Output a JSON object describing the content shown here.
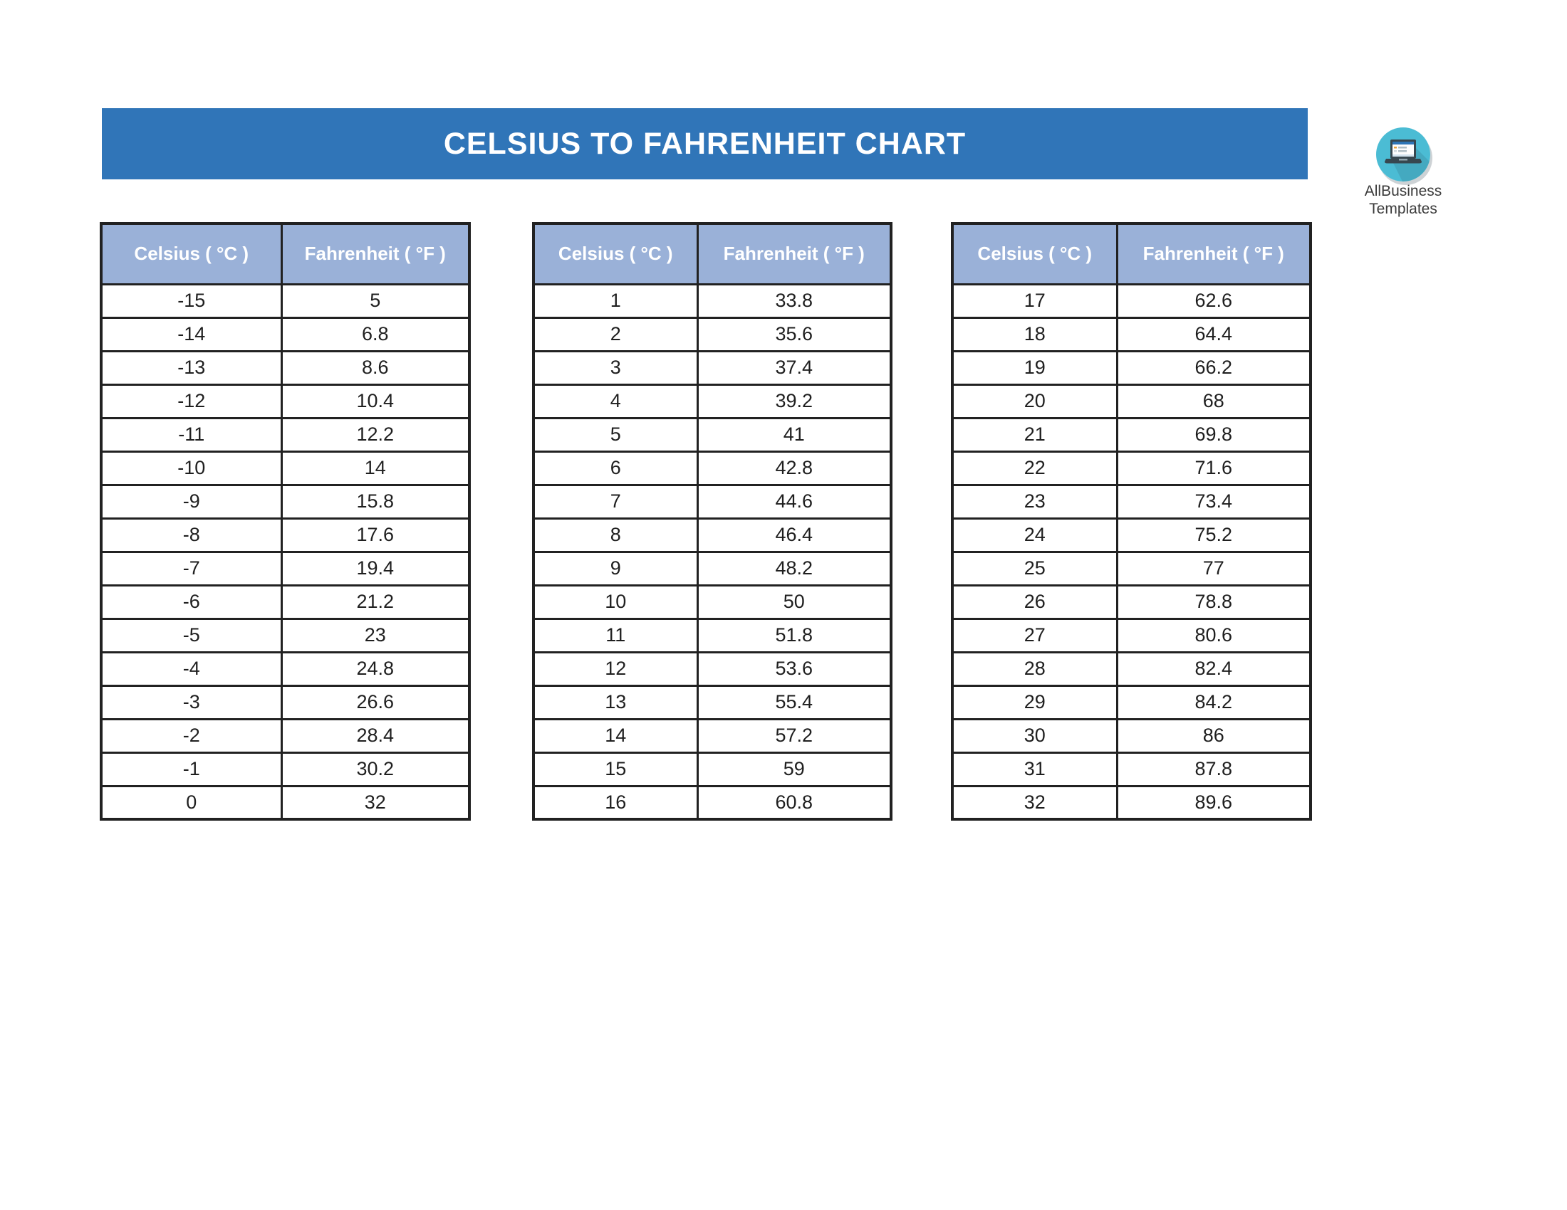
{
  "banner": {
    "title": "CELSIUS TO FAHRENHEIT CHART",
    "bg_color": "#3075B8",
    "text_color": "#ffffff"
  },
  "logo": {
    "icon": "laptop-icon",
    "line1": "AllBusiness",
    "line2": "Templates",
    "circle_color": "#4BBCD4",
    "text_color": "#3b3b3b"
  },
  "colors": {
    "table_header_bg": "#9AB1D8",
    "table_border": "#212121",
    "cell_text": "#1f1f1f"
  },
  "tables": [
    {
      "headers": [
        "Celsius ( °C )",
        "Fahrenheit ( °F )"
      ],
      "rows": [
        [
          "-15",
          "5"
        ],
        [
          "-14",
          "6.8"
        ],
        [
          "-13",
          "8.6"
        ],
        [
          "-12",
          "10.4"
        ],
        [
          "-11",
          "12.2"
        ],
        [
          "-10",
          "14"
        ],
        [
          "-9",
          "15.8"
        ],
        [
          "-8",
          "17.6"
        ],
        [
          "-7",
          "19.4"
        ],
        [
          "-6",
          "21.2"
        ],
        [
          "-5",
          "23"
        ],
        [
          "-4",
          "24.8"
        ],
        [
          "-3",
          "26.6"
        ],
        [
          "-2",
          "28.4"
        ],
        [
          "-1",
          "30.2"
        ],
        [
          "0",
          "32"
        ]
      ]
    },
    {
      "headers": [
        "Celsius ( °C )",
        "Fahrenheit ( °F )"
      ],
      "rows": [
        [
          "1",
          "33.8"
        ],
        [
          "2",
          "35.6"
        ],
        [
          "3",
          "37.4"
        ],
        [
          "4",
          "39.2"
        ],
        [
          "5",
          "41"
        ],
        [
          "6",
          "42.8"
        ],
        [
          "7",
          "44.6"
        ],
        [
          "8",
          "46.4"
        ],
        [
          "9",
          "48.2"
        ],
        [
          "10",
          "50"
        ],
        [
          "11",
          "51.8"
        ],
        [
          "12",
          "53.6"
        ],
        [
          "13",
          "55.4"
        ],
        [
          "14",
          "57.2"
        ],
        [
          "15",
          "59"
        ],
        [
          "16",
          "60.8"
        ]
      ]
    },
    {
      "headers": [
        "Celsius ( °C )",
        "Fahrenheit ( °F )"
      ],
      "rows": [
        [
          "17",
          "62.6"
        ],
        [
          "18",
          "64.4"
        ],
        [
          "19",
          "66.2"
        ],
        [
          "20",
          "68"
        ],
        [
          "21",
          "69.8"
        ],
        [
          "22",
          "71.6"
        ],
        [
          "23",
          "73.4"
        ],
        [
          "24",
          "75.2"
        ],
        [
          "25",
          "77"
        ],
        [
          "26",
          "78.8"
        ],
        [
          "27",
          "80.6"
        ],
        [
          "28",
          "82.4"
        ],
        [
          "29",
          "84.2"
        ],
        [
          "30",
          "86"
        ],
        [
          "31",
          "87.8"
        ],
        [
          "32",
          "89.6"
        ]
      ]
    }
  ]
}
